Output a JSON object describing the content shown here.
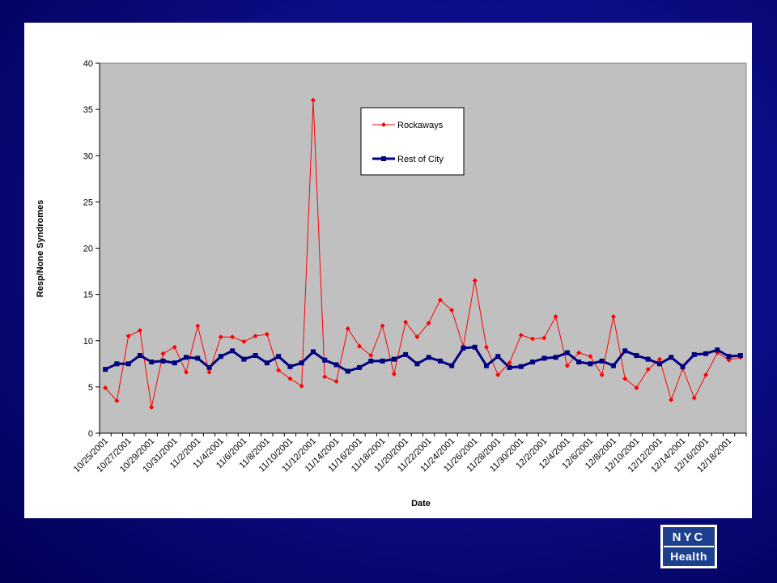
{
  "chart_data": {
    "type": "line",
    "title": "",
    "xlabel": "Date",
    "ylabel": "Resp/None Syndromes",
    "ylim": [
      0,
      40
    ],
    "yticks": [
      0,
      5,
      10,
      15,
      20,
      25,
      30,
      35,
      40
    ],
    "grid": false,
    "legend_position": "top-center",
    "plot_background": "#c0c0c0",
    "x_dates": [
      "10/25/2001",
      "10/26/2001",
      "10/27/2001",
      "10/28/2001",
      "10/29/2001",
      "10/30/2001",
      "10/31/2001",
      "11/1/2001",
      "11/2/2001",
      "11/3/2001",
      "11/4/2001",
      "11/5/2001",
      "11/6/2001",
      "11/7/2001",
      "11/8/2001",
      "11/9/2001",
      "11/10/2001",
      "11/11/2001",
      "11/12/2001",
      "11/13/2001",
      "11/14/2001",
      "11/15/2001",
      "11/16/2001",
      "11/17/2001",
      "11/18/2001",
      "11/19/2001",
      "11/20/2001",
      "11/21/2001",
      "11/22/2001",
      "11/23/2001",
      "11/24/2001",
      "11/25/2001",
      "11/26/2001",
      "11/27/2001",
      "11/28/2001",
      "11/29/2001",
      "11/30/2001",
      "12/1/2001",
      "12/2/2001",
      "12/3/2001",
      "12/4/2001",
      "12/5/2001",
      "12/6/2001",
      "12/7/2001",
      "12/8/2001",
      "12/9/2001",
      "12/10/2001",
      "12/11/2001",
      "12/12/2001",
      "12/13/2001",
      "12/14/2001",
      "12/15/2001",
      "12/16/2001",
      "12/17/2001",
      "12/18/2001",
      "12/19/2001"
    ],
    "x_tick_labels": [
      "10/25/2001",
      "10/27/2001",
      "10/29/2001",
      "10/31/2001",
      "11/2/2001",
      "11/4/2001",
      "11/6/2001",
      "11/8/2001",
      "11/10/2001",
      "11/12/2001",
      "11/14/2001",
      "11/16/2001",
      "11/18/2001",
      "11/20/2001",
      "11/22/2001",
      "11/24/2001",
      "11/26/2001",
      "11/28/2001",
      "11/30/2001",
      "12/2/2001",
      "12/4/2001",
      "12/6/2001",
      "12/8/2001",
      "12/10/2001",
      "12/12/2001",
      "12/14/2001",
      "12/16/2001",
      "12/18/2001"
    ],
    "series": [
      {
        "name": "Rockaways",
        "color": "#ff0000",
        "marker": "diamond",
        "values": [
          4.9,
          3.5,
          10.5,
          11.1,
          2.8,
          8.6,
          9.3,
          6.6,
          11.6,
          6.6,
          10.4,
          10.4,
          9.9,
          10.5,
          10.7,
          6.8,
          5.9,
          5.1,
          36.0,
          6.1,
          5.6,
          11.3,
          9.4,
          8.4,
          11.6,
          6.4,
          12.0,
          10.4,
          11.9,
          14.4,
          13.3,
          9.4,
          16.5,
          9.3,
          6.3,
          7.6,
          10.6,
          10.2,
          10.3,
          12.6,
          7.3,
          8.7,
          8.3,
          6.3,
          12.6,
          5.9,
          4.9,
          6.9,
          8.0,
          3.6,
          7.0,
          3.8,
          6.3,
          8.7,
          7.9,
          8.2
        ]
      },
      {
        "name": "Rest of City",
        "color": "#000080",
        "marker": "square",
        "values": [
          6.9,
          7.5,
          7.5,
          8.4,
          7.7,
          7.8,
          7.6,
          8.2,
          8.1,
          7.1,
          8.3,
          8.9,
          8.0,
          8.4,
          7.6,
          8.3,
          7.2,
          7.6,
          8.8,
          7.9,
          7.4,
          6.7,
          7.1,
          7.8,
          7.8,
          8.0,
          8.5,
          7.5,
          8.2,
          7.8,
          7.3,
          9.2,
          9.3,
          7.3,
          8.3,
          7.1,
          7.2,
          7.7,
          8.1,
          8.2,
          8.7,
          7.7,
          7.5,
          7.8,
          7.3,
          8.9,
          8.4,
          8.0,
          7.5,
          8.2,
          7.2,
          8.5,
          8.6,
          9.0,
          8.3,
          8.4
        ]
      }
    ]
  },
  "logo": {
    "top": "NYC",
    "bottom": "Health"
  }
}
